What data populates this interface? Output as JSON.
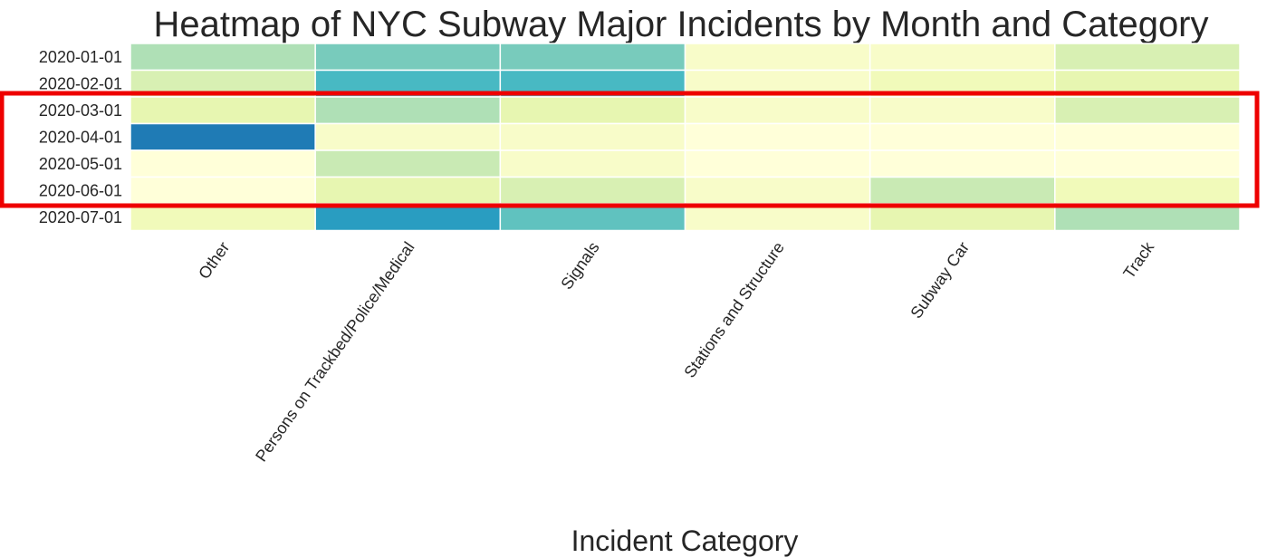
{
  "chart_data": {
    "type": "heatmap",
    "title": "Heatmap of NYC Subway Major Incidents by Month and Category",
    "xlabel": "Incident Category",
    "ylabel": "",
    "x_categories": [
      "Other",
      "Persons on Trackbed/Police/Medical",
      "Signals",
      "Stations and Structure",
      "Subway Car",
      "Track"
    ],
    "y_categories": [
      "2020-01-01",
      "2020-02-01",
      "2020-03-01",
      "2020-04-01",
      "2020-05-01",
      "2020-06-01",
      "2020-07-01"
    ],
    "values": [
      [
        6,
        8,
        8,
        1,
        1,
        4
      ],
      [
        4,
        10,
        10,
        1,
        2,
        3
      ],
      [
        3,
        6,
        3,
        1,
        1,
        4
      ],
      [
        14,
        1,
        1,
        0,
        0,
        0
      ],
      [
        0,
        5,
        1,
        0,
        0,
        0
      ],
      [
        0,
        3,
        4,
        1,
        5,
        2
      ],
      [
        2,
        12,
        9,
        1,
        3,
        6
      ]
    ],
    "colormap": "YlGnBu",
    "vmin": 0,
    "vmax": 14,
    "colorbar": false,
    "highlight": {
      "color": "#ee0000",
      "rows": [
        "2020-03-01",
        "2020-04-01",
        "2020-05-01",
        "2020-06-01"
      ]
    }
  }
}
